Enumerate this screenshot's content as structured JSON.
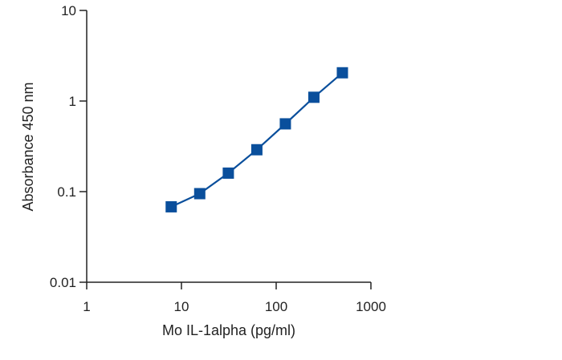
{
  "chart_data": {
    "type": "line",
    "title": "",
    "xlabel": "Mo IL-1alpha (pg/ml)",
    "ylabel": "Absorbance 450 nm",
    "xscale": "log",
    "yscale": "log",
    "xlim": [
      1,
      1000
    ],
    "ylim": [
      0.01,
      10
    ],
    "xticks": [
      "1",
      "10",
      "100",
      "1000"
    ],
    "yticks": [
      "0.01",
      "0.1",
      "1",
      "10"
    ],
    "grid": false,
    "legend": "none",
    "colors": {
      "series": "#0a4f9c",
      "axis": "#222222"
    },
    "series": [
      {
        "x": [
          7.8,
          15.6,
          31.25,
          62.5,
          125,
          250,
          500
        ],
        "y": [
          0.068,
          0.095,
          0.16,
          0.29,
          0.56,
          1.1,
          2.05
        ],
        "marker": "square"
      }
    ]
  }
}
